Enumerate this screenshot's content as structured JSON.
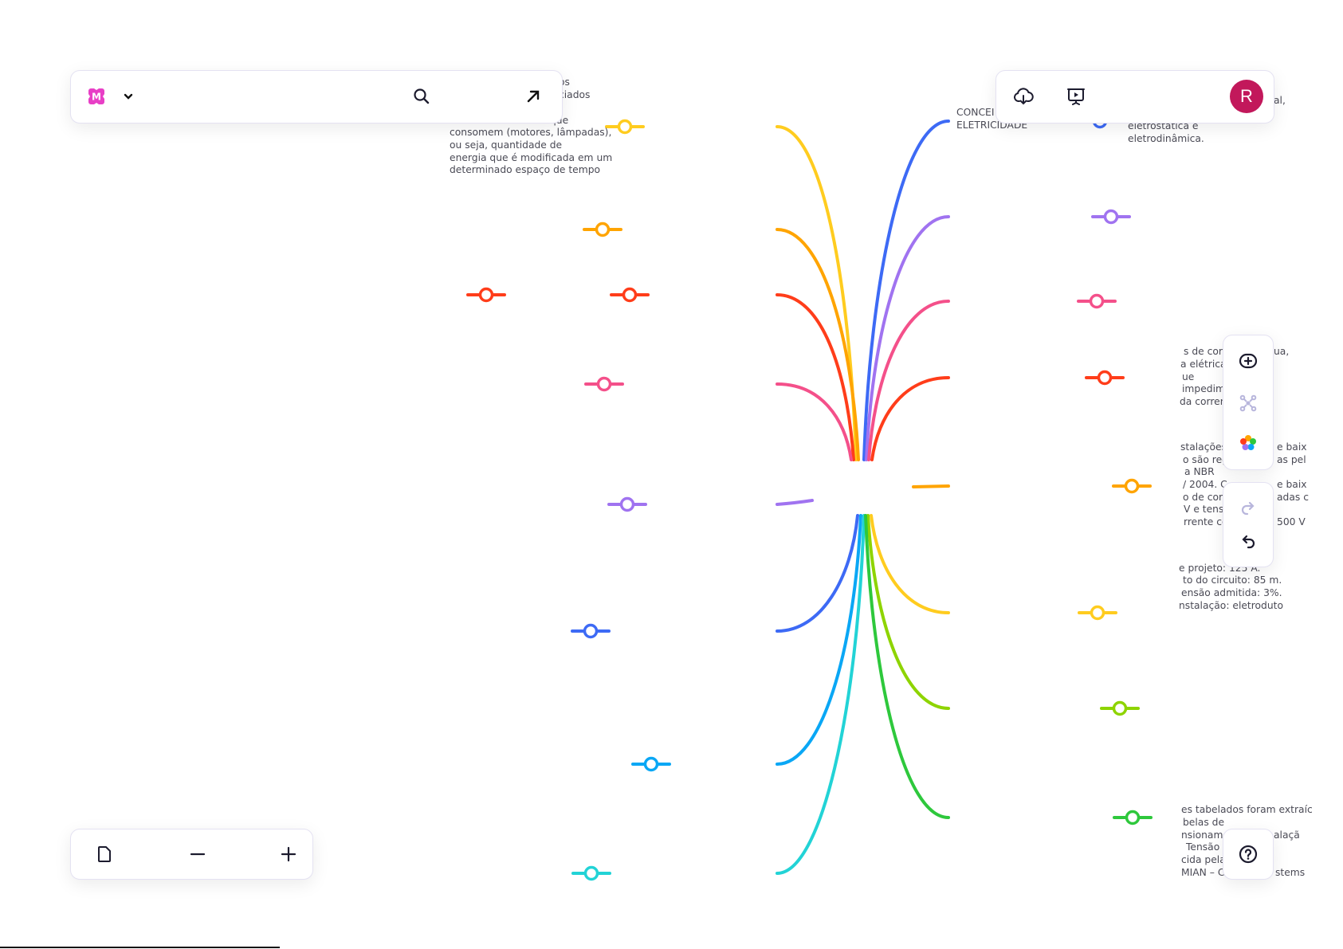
{
  "app": {
    "logo_letter": "M",
    "logo_color": "#e83fc6",
    "avatar_letter": "R",
    "avatar_color": "#c2185b"
  },
  "toolbar_left": {
    "icons": [
      "logo-icon",
      "chevron-down-icon",
      "search-icon",
      "arrow-up-right-icon"
    ]
  },
  "toolbar_right": {
    "icons": [
      "cloud-download-icon",
      "presentation-icon"
    ]
  },
  "side_toolbar": {
    "icons": [
      "add-node-icon",
      "mindmap-layout-icon",
      "color-palette-icon",
      "redo-icon",
      "undo-icon",
      "help-icon"
    ]
  },
  "zoom_toolbar": {
    "icons": [
      "page-icon",
      "zoom-out-icon",
      "zoom-in-icon"
    ]
  },
  "branch_colors": {
    "yellow": "#ffcc1f",
    "orange": "#ffa400",
    "red": "#ff3d1a",
    "pink": "#f4508a",
    "purple": "#a073f0",
    "blue": "#3d6af5",
    "sky": "#0aa7f5",
    "cyan": "#22d3d6",
    "lime": "#8ed400",
    "green": "#2ec83c"
  },
  "texts": {
    "left_top": [
      "os",
      "ciados",
      "que",
      "consomem (motores, lâmpadas),",
      "ou seja, quantidade de",
      "energia que é modificada em um",
      "determinado espaço de tempo"
    ],
    "center_title": [
      "CONCEI",
      "ELETRICIDADE"
    ],
    "right_top": [
      "al,",
      "eletrostática e",
      "eletrodinâmica."
    ],
    "right_block1": [
      "s de cor",
      "ua,",
      "a elétrica",
      "ue",
      "impedim",
      "da corren"
    ],
    "right_block2": [
      "stalações",
      "e baix",
      "o são reg",
      "as pel",
      "a NBR",
      "/ 2004. C",
      "e baix",
      "o de cor",
      "adas c",
      "V e tens",
      "rrente co",
      "500 V"
    ],
    "right_block3": [
      "e projeto: 125 A.",
      "to do circuito: 85 m.",
      "ensão admitida: 3%.",
      "nstalação: eletroduto"
    ],
    "right_block4": [
      "es tabelados foram extraíc",
      "belas de",
      "nsionam",
      "alaçã",
      "Tensão",
      "cida pela",
      "MIAN – C",
      "stems"
    ]
  }
}
